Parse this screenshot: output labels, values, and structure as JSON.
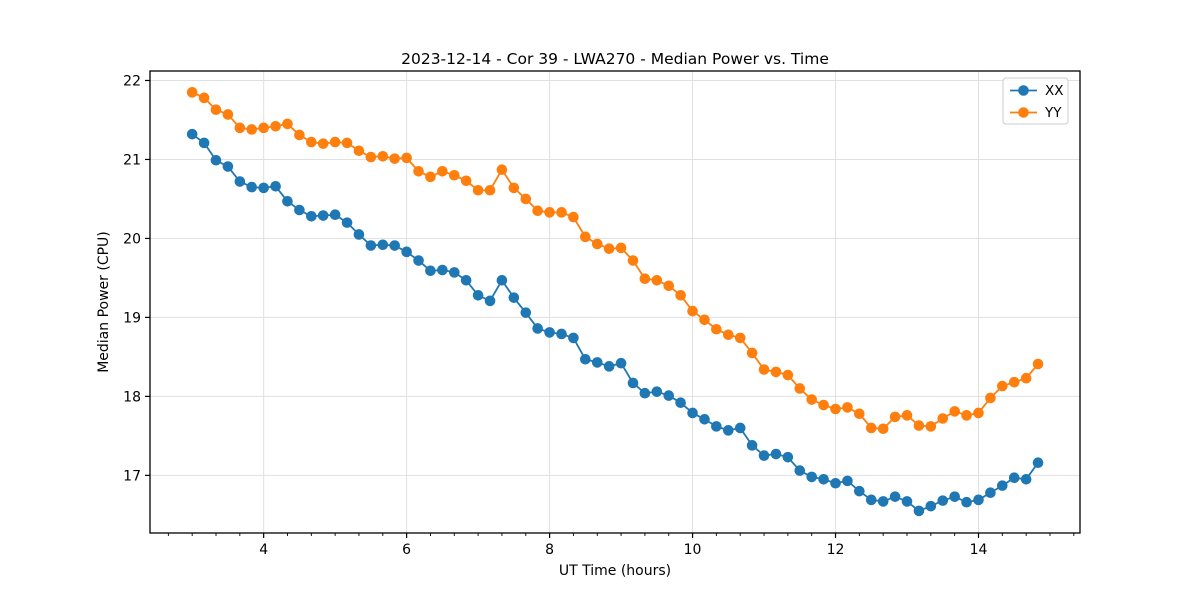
{
  "chart_data": {
    "type": "line",
    "title": "2023-12-14 - Cor 39 - LWA270 - Median Power vs. Time",
    "xlabel": "UT Time (hours)",
    "ylabel": "Median Power (CPU)",
    "xlim": [
      2.41,
      15.42
    ],
    "ylim": [
      16.27,
      22.12
    ],
    "xticks": [
      4,
      6,
      8,
      10,
      12,
      14
    ],
    "yticks": [
      17,
      18,
      19,
      20,
      21,
      22
    ],
    "x_minor_step": 0.3333,
    "grid": true,
    "grid_color": "#e0e0e0",
    "legend_position": "upper right",
    "x": [
      3.0,
      3.167,
      3.333,
      3.5,
      3.667,
      3.833,
      4.0,
      4.167,
      4.333,
      4.5,
      4.667,
      4.833,
      5.0,
      5.167,
      5.333,
      5.5,
      5.667,
      5.833,
      6.0,
      6.167,
      6.333,
      6.5,
      6.667,
      6.833,
      7.0,
      7.167,
      7.333,
      7.5,
      7.667,
      7.833,
      8.0,
      8.167,
      8.333,
      8.5,
      8.667,
      8.833,
      9.0,
      9.167,
      9.333,
      9.5,
      9.667,
      9.833,
      10.0,
      10.167,
      10.333,
      10.5,
      10.667,
      10.833,
      11.0,
      11.167,
      11.333,
      11.5,
      11.667,
      11.833,
      12.0,
      12.167,
      12.333,
      12.5,
      12.667,
      12.833,
      13.0,
      13.167,
      13.333,
      13.5,
      13.667,
      13.833,
      14.0,
      14.167,
      14.333,
      14.5,
      14.667,
      14.833
    ],
    "series": [
      {
        "name": "XX",
        "color": "#1f77b4",
        "values": [
          21.32,
          21.21,
          20.99,
          20.91,
          20.72,
          20.65,
          20.64,
          20.66,
          20.47,
          20.36,
          20.28,
          20.29,
          20.3,
          20.2,
          20.05,
          19.91,
          19.92,
          19.91,
          19.83,
          19.72,
          19.59,
          19.6,
          19.57,
          19.47,
          19.28,
          19.21,
          19.47,
          19.25,
          19.06,
          18.86,
          18.81,
          18.79,
          18.74,
          18.47,
          18.43,
          18.38,
          18.42,
          18.17,
          18.04,
          18.06,
          18.01,
          17.92,
          17.79,
          17.71,
          17.62,
          17.57,
          17.6,
          17.38,
          17.25,
          17.27,
          17.23,
          17.06,
          16.98,
          16.95,
          16.9,
          16.93,
          16.8,
          16.69,
          16.67,
          16.73,
          16.67,
          16.55,
          16.61,
          16.68,
          16.73,
          16.66,
          16.69,
          16.78,
          16.87,
          16.97,
          16.95,
          17.16
        ]
      },
      {
        "name": "YY",
        "color": "#ff7f0e",
        "values": [
          21.85,
          21.78,
          21.63,
          21.57,
          21.4,
          21.38,
          21.4,
          21.42,
          21.45,
          21.31,
          21.22,
          21.2,
          21.22,
          21.21,
          21.11,
          21.03,
          21.04,
          21.01,
          21.02,
          20.85,
          20.78,
          20.85,
          20.8,
          20.73,
          20.61,
          20.61,
          20.87,
          20.64,
          20.5,
          20.35,
          20.33,
          20.33,
          20.27,
          20.02,
          19.93,
          19.87,
          19.88,
          19.72,
          19.49,
          19.47,
          19.4,
          19.28,
          19.08,
          18.97,
          18.85,
          18.78,
          18.74,
          18.55,
          18.34,
          18.31,
          18.27,
          18.1,
          17.96,
          17.89,
          17.84,
          17.86,
          17.78,
          17.6,
          17.59,
          17.74,
          17.76,
          17.63,
          17.62,
          17.72,
          17.81,
          17.76,
          17.79,
          17.98,
          18.13,
          18.18,
          18.23,
          18.41
        ]
      }
    ]
  }
}
